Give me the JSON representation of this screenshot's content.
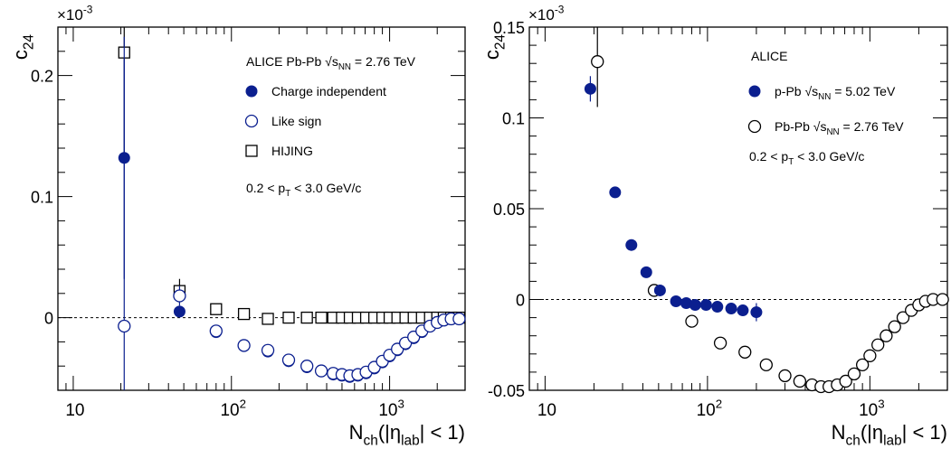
{
  "chart_data": [
    {
      "type": "scatter",
      "title": "",
      "xlabel": "N_ch(|η_lab| < 1)",
      "ylabel": "c_2{4}",
      "y_exponent": "×10^-3",
      "xscale": "log",
      "xlim": [
        8,
        3000
      ],
      "ylim": [
        -6e-05,
        0.00024
      ],
      "x_ticks": [
        "10",
        "10^2",
        "10^3"
      ],
      "y_ticks": [
        "0",
        "0.1",
        "0.2"
      ],
      "legend_header": "ALICE Pb-Pb √s_NN = 2.76 TeV",
      "annotation": "0.2 < p_T < 3.0 GeV/c",
      "legend_position": "top-right",
      "series": [
        {
          "name": "Charge independent",
          "marker": "filled-circle",
          "color": "#0b1f8f",
          "points": [
            {
              "x": 21,
              "y": 0.000132,
              "err": 0.0001
            },
            {
              "x": 47,
              "y": 5e-06,
              "err": 5e-06
            },
            {
              "x": 80,
              "y": -1.2e-05
            },
            {
              "x": 120,
              "y": -2.3e-05
            },
            {
              "x": 170,
              "y": -2.8e-05
            },
            {
              "x": 230,
              "y": -3.6e-05
            },
            {
              "x": 300,
              "y": -4.1e-05
            },
            {
              "x": 370,
              "y": -4.4e-05
            },
            {
              "x": 440,
              "y": -4.7e-05
            },
            {
              "x": 500,
              "y": -4.8e-05
            },
            {
              "x": 560,
              "y": -4.9e-05
            },
            {
              "x": 630,
              "y": -4.8e-05
            },
            {
              "x": 710,
              "y": -4.6e-05
            },
            {
              "x": 800,
              "y": -4.2e-05
            },
            {
              "x": 900,
              "y": -3.7e-05
            },
            {
              "x": 1000,
              "y": -3.2e-05
            },
            {
              "x": 1120,
              "y": -2.7e-05
            },
            {
              "x": 1260,
              "y": -2.2e-05
            },
            {
              "x": 1420,
              "y": -1.7e-05
            },
            {
              "x": 1600,
              "y": -1.2e-05
            },
            {
              "x": 1800,
              "y": -7e-06
            },
            {
              "x": 2000,
              "y": -4e-06
            },
            {
              "x": 2200,
              "y": -2e-06
            },
            {
              "x": 2450,
              "y": -1e-06
            },
            {
              "x": 2750,
              "y": -1e-06
            }
          ]
        },
        {
          "name": "Like sign",
          "marker": "open-circle",
          "color": "#0b1f8f",
          "points": [
            {
              "x": 21,
              "y": -7e-06,
              "err": 0.00022
            },
            {
              "x": 47,
              "y": 1.8e-05,
              "err": 8e-06
            },
            {
              "x": 80,
              "y": -1.1e-05
            },
            {
              "x": 120,
              "y": -2.3e-05
            },
            {
              "x": 170,
              "y": -2.7e-05
            },
            {
              "x": 230,
              "y": -3.5e-05
            },
            {
              "x": 300,
              "y": -4e-05
            },
            {
              "x": 370,
              "y": -4.4e-05
            },
            {
              "x": 440,
              "y": -4.6e-05
            },
            {
              "x": 500,
              "y": -4.7e-05
            },
            {
              "x": 560,
              "y": -4.8e-05
            },
            {
              "x": 630,
              "y": -4.7e-05
            },
            {
              "x": 710,
              "y": -4.5e-05
            },
            {
              "x": 800,
              "y": -4.1e-05
            },
            {
              "x": 900,
              "y": -3.6e-05
            },
            {
              "x": 1000,
              "y": -3.1e-05
            },
            {
              "x": 1120,
              "y": -2.6e-05
            },
            {
              "x": 1260,
              "y": -2.1e-05
            },
            {
              "x": 1420,
              "y": -1.6e-05
            },
            {
              "x": 1600,
              "y": -1.1e-05
            },
            {
              "x": 1800,
              "y": -7e-06
            },
            {
              "x": 2000,
              "y": -4e-06
            },
            {
              "x": 2200,
              "y": -2e-06
            },
            {
              "x": 2450,
              "y": -1e-06
            },
            {
              "x": 2750,
              "y": -1e-06
            }
          ]
        },
        {
          "name": "HIJING",
          "marker": "open-square",
          "color": "#000000",
          "points": [
            {
              "x": 21,
              "y": 0.000219,
              "err": 9e-05
            },
            {
              "x": 47,
              "y": 2.2e-05,
              "err": 1e-05
            },
            {
              "x": 80,
              "y": 7e-06
            },
            {
              "x": 120,
              "y": 3e-06
            },
            {
              "x": 170,
              "y": -1e-06
            },
            {
              "x": 230,
              "y": 0.0
            },
            {
              "x": 300,
              "y": 0.0
            },
            {
              "x": 370,
              "y": 0.0
            },
            {
              "x": 440,
              "y": 0.0
            },
            {
              "x": 500,
              "y": 0.0
            },
            {
              "x": 560,
              "y": 0.0
            },
            {
              "x": 630,
              "y": 0.0
            },
            {
              "x": 710,
              "y": 0.0
            },
            {
              "x": 800,
              "y": 0.0
            },
            {
              "x": 900,
              "y": 0.0
            },
            {
              "x": 1000,
              "y": 0.0
            },
            {
              "x": 1120,
              "y": 0.0
            },
            {
              "x": 1260,
              "y": 0.0
            },
            {
              "x": 1420,
              "y": 0.0
            },
            {
              "x": 1600,
              "y": 0.0
            },
            {
              "x": 1800,
              "y": 0.0
            },
            {
              "x": 2000,
              "y": 0.0
            },
            {
              "x": 2200,
              "y": 0.0
            },
            {
              "x": 2450,
              "y": 0.0
            },
            {
              "x": 2750,
              "y": 0.0
            }
          ]
        }
      ]
    },
    {
      "type": "scatter",
      "title": "",
      "xlabel": "N_ch(|η_lab| < 1)",
      "ylabel": "c_2{4}",
      "y_exponent": "×10^-3",
      "xscale": "log",
      "xlim": [
        8,
        3000
      ],
      "ylim": [
        -5e-05,
        0.00015
      ],
      "x_ticks": [
        "10",
        "10^2",
        "10^3"
      ],
      "y_ticks": [
        "-0.05",
        "0",
        "0.05",
        "0.1",
        "0.15"
      ],
      "legend_header": "ALICE",
      "annotation": "0.2 < p_T < 3.0 GeV/c",
      "legend_position": "top-right",
      "series": [
        {
          "name": "p-Pb √s_NN = 5.02 TeV",
          "marker": "filled-circle",
          "color": "#0b1f8f",
          "points": [
            {
              "x": 19,
              "y": 0.000116,
              "err": 7e-06
            },
            {
              "x": 27,
              "y": 5.9e-05
            },
            {
              "x": 34,
              "y": 3e-05
            },
            {
              "x": 42,
              "y": 1.5e-05
            },
            {
              "x": 51,
              "y": 5e-06
            },
            {
              "x": 64,
              "y": -1e-06
            },
            {
              "x": 74,
              "y": -2e-06
            },
            {
              "x": 84,
              "y": -3e-06
            },
            {
              "x": 98,
              "y": -3e-06
            },
            {
              "x": 115,
              "y": -4e-06
            },
            {
              "x": 140,
              "y": -5e-06
            },
            {
              "x": 165,
              "y": -6e-06
            },
            {
              "x": 200,
              "y": -7e-06,
              "err": 5e-06
            }
          ]
        },
        {
          "name": "Pb-Pb √s_NN = 2.76 TeV",
          "marker": "open-circle",
          "color": "#000000",
          "points": [
            {
              "x": 21,
              "y": 0.000131,
              "err": 2.5e-05
            },
            {
              "x": 47,
              "y": 5e-06
            },
            {
              "x": 80,
              "y": -1.2e-05
            },
            {
              "x": 120,
              "y": -2.4e-05
            },
            {
              "x": 170,
              "y": -2.9e-05
            },
            {
              "x": 230,
              "y": -3.6e-05
            },
            {
              "x": 300,
              "y": -4.2e-05
            },
            {
              "x": 370,
              "y": -4.5e-05
            },
            {
              "x": 440,
              "y": -4.7e-05
            },
            {
              "x": 500,
              "y": -4.8e-05
            },
            {
              "x": 560,
              "y": -4.8e-05
            },
            {
              "x": 630,
              "y": -4.7e-05
            },
            {
              "x": 710,
              "y": -4.5e-05
            },
            {
              "x": 800,
              "y": -4.1e-05
            },
            {
              "x": 900,
              "y": -3.6e-05
            },
            {
              "x": 1000,
              "y": -3.1e-05
            },
            {
              "x": 1120,
              "y": -2.5e-05
            },
            {
              "x": 1260,
              "y": -2e-05
            },
            {
              "x": 1420,
              "y": -1.5e-05
            },
            {
              "x": 1600,
              "y": -1e-05
            },
            {
              "x": 1800,
              "y": -6e-06
            },
            {
              "x": 2000,
              "y": -3e-06
            },
            {
              "x": 2200,
              "y": -1e-06
            },
            {
              "x": 2450,
              "y": 0.0
            },
            {
              "x": 2800,
              "y": 0.0
            }
          ]
        }
      ]
    }
  ]
}
